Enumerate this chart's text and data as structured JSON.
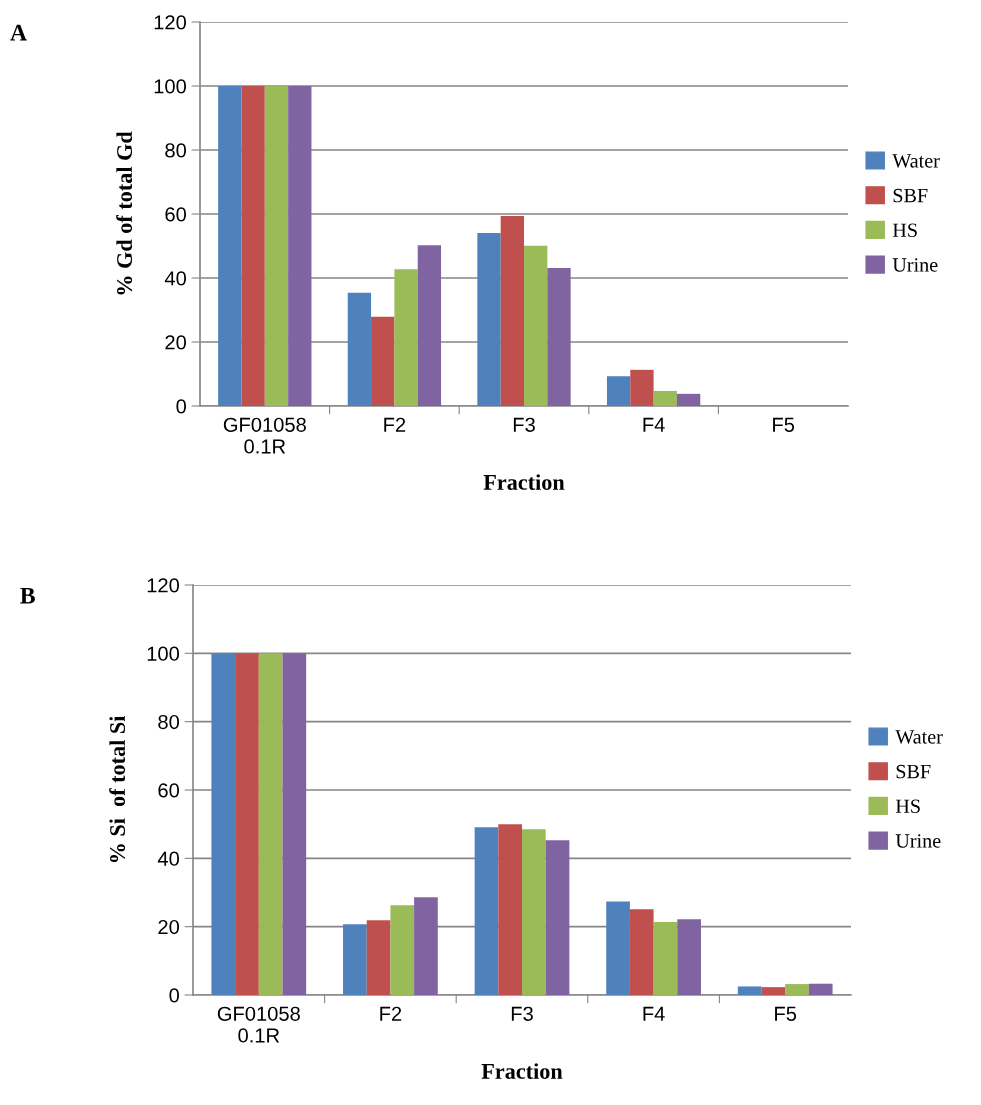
{
  "chart_data": [
    {
      "type": "bar",
      "annotations": [
        "A"
      ],
      "xlabel": "Fraction",
      "ylabel": "% Gd of total Gd",
      "categories": [
        "GF01058\n0.1R",
        "F2",
        "F3",
        "F4",
        "F5"
      ],
      "series": [
        {
          "name": "Water",
          "color": "#4f81bd",
          "values": [
            100,
            35.4,
            54.1,
            9.3,
            0
          ]
        },
        {
          "name": "SBF",
          "color": "#c0504d",
          "values": [
            100,
            27.9,
            59.4,
            11.3,
            0
          ]
        },
        {
          "name": "HS",
          "color": "#9bbb59",
          "values": [
            100,
            42.7,
            50.1,
            4.7,
            null
          ]
        },
        {
          "name": "Urine",
          "color": "#8064a2",
          "values": [
            100,
            50.2,
            43.1,
            3.8,
            null
          ]
        }
      ],
      "ylim": [
        0,
        120
      ],
      "yticks": [
        0,
        20,
        40,
        60,
        80,
        100,
        120
      ],
      "grid": "y",
      "legend": "right"
    },
    {
      "type": "bar",
      "annotations": [
        "B"
      ],
      "xlabel": "Fraction",
      "ylabel": "% Si  of total Si",
      "categories": [
        "GF01058\n0.1R",
        "F2",
        "F3",
        "F4",
        "F5"
      ],
      "series": [
        {
          "name": "Water",
          "color": "#4f81bd",
          "values": [
            100,
            20.7,
            49.1,
            27.4,
            2.5
          ]
        },
        {
          "name": "SBF",
          "color": "#c0504d",
          "values": [
            100,
            21.9,
            50.0,
            25.1,
            2.3
          ]
        },
        {
          "name": "HS",
          "color": "#9bbb59",
          "values": [
            100,
            26.3,
            48.5,
            21.4,
            3.2
          ]
        },
        {
          "name": "Urine",
          "color": "#8064a2",
          "values": [
            100,
            28.6,
            45.3,
            22.2,
            3.3
          ]
        }
      ],
      "ylim": [
        0,
        120
      ],
      "yticks": [
        0,
        20,
        40,
        60,
        80,
        100,
        120
      ],
      "grid": "y",
      "legend": "right"
    }
  ]
}
